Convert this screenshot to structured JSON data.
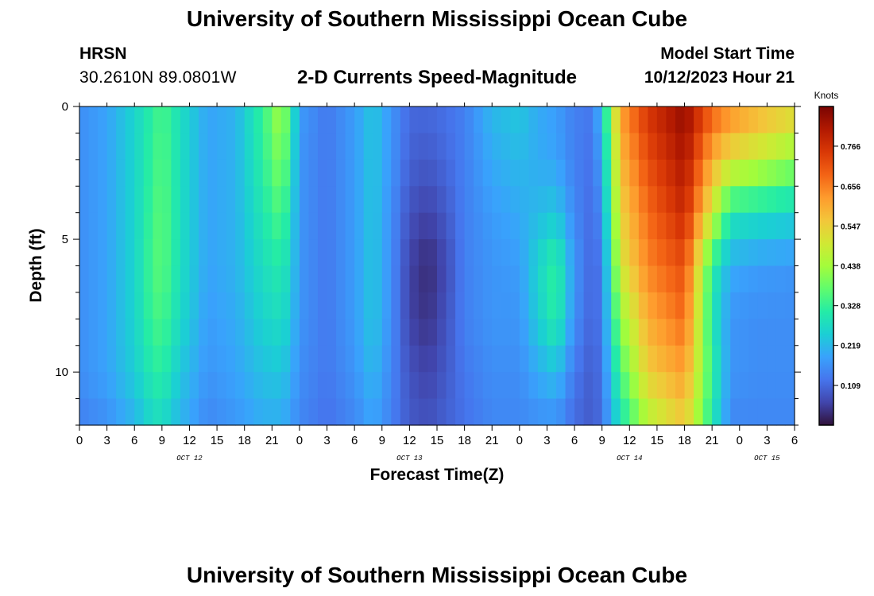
{
  "header": {
    "title": "University of Southern Mississippi Ocean Cube",
    "station": "HRSN",
    "coords": "30.2610N  89.0801W",
    "subtitle": "2-D Currents Speed-Magnitude",
    "start_label": "Model Start Time",
    "start_value": "10/12/2023 Hour 21"
  },
  "footer": {
    "title": "University of Southern Mississippi Ocean Cube"
  },
  "chart_data": {
    "type": "heatmap",
    "title": "2-D Currents Speed-Magnitude",
    "xlabel": "Forecast Time(Z)",
    "ylabel": "Depth (ft)",
    "x_range_hours": [
      0,
      78
    ],
    "x_tick_step_hours": 3,
    "x_tick_labels": [
      "0",
      "3",
      "6",
      "9",
      "12",
      "15",
      "18",
      "21",
      "0",
      "3",
      "6",
      "9",
      "12",
      "15",
      "18",
      "21",
      "0",
      "3",
      "6",
      "9",
      "12",
      "15",
      "18",
      "21",
      "0",
      "3",
      "6"
    ],
    "day_labels": [
      {
        "label": "OCT 12",
        "hour": 12
      },
      {
        "label": "OCT 13",
        "hour": 36
      },
      {
        "label": "OCT 14",
        "hour": 60
      },
      {
        "label": "OCT 15",
        "hour": 75
      }
    ],
    "y_range_ft": [
      0,
      12
    ],
    "y_tick_labels": [
      {
        "value": 0,
        "label": "0"
      },
      {
        "value": 5,
        "label": "5"
      },
      {
        "value": 10,
        "label": "10"
      }
    ],
    "colorbar": {
      "unit": "Knots",
      "min": 0.0,
      "max": 0.875,
      "ticks": [
        "0.766",
        "0.656",
        "0.547",
        "0.438",
        "0.328",
        "0.219",
        "0.109"
      ],
      "tick_values": [
        0.766,
        0.656,
        0.547,
        0.438,
        0.328,
        0.219,
        0.109
      ],
      "colors": [
        "#30123b",
        "#4145ab",
        "#4675ed",
        "#39a2fc",
        "#1bcfd4",
        "#24eca6",
        "#61fc6c",
        "#a4fc3b",
        "#d1e834",
        "#f3c63a",
        "#fe9b2d",
        "#f36315",
        "#d93806",
        "#b11901",
        "#7a0402"
      ]
    },
    "grid_dims": {
      "depth_rows": 12,
      "time_columns": 78
    },
    "profile_depths_ft": [
      0,
      2,
      4,
      6,
      8,
      10,
      12
    ],
    "speed_profiles_knots": [
      {
        "hour": 0,
        "speeds": [
          0.16,
          0.16,
          0.16,
          0.16,
          0.16,
          0.16,
          0.14
        ]
      },
      {
        "hour": 3,
        "speeds": [
          0.19,
          0.19,
          0.19,
          0.19,
          0.19,
          0.19,
          0.16
        ]
      },
      {
        "hour": 6,
        "speeds": [
          0.26,
          0.26,
          0.26,
          0.26,
          0.26,
          0.25,
          0.21
        ]
      },
      {
        "hour": 8,
        "speeds": [
          0.32,
          0.33,
          0.34,
          0.35,
          0.34,
          0.31,
          0.27
        ]
      },
      {
        "hour": 9,
        "speeds": [
          0.35,
          0.36,
          0.37,
          0.37,
          0.35,
          0.32,
          0.27
        ]
      },
      {
        "hour": 11,
        "speeds": [
          0.28,
          0.28,
          0.28,
          0.28,
          0.27,
          0.24,
          0.21
        ]
      },
      {
        "hour": 14,
        "speeds": [
          0.19,
          0.19,
          0.19,
          0.19,
          0.18,
          0.17,
          0.15
        ]
      },
      {
        "hour": 17,
        "speeds": [
          0.21,
          0.21,
          0.21,
          0.21,
          0.2,
          0.19,
          0.17
        ]
      },
      {
        "hour": 20,
        "speeds": [
          0.33,
          0.32,
          0.3,
          0.28,
          0.26,
          0.23,
          0.2
        ]
      },
      {
        "hour": 22,
        "speeds": [
          0.45,
          0.41,
          0.36,
          0.31,
          0.28,
          0.24,
          0.2
        ]
      },
      {
        "hour": 23,
        "speeds": [
          0.33,
          0.31,
          0.28,
          0.26,
          0.24,
          0.21,
          0.18
        ]
      },
      {
        "hour": 24,
        "speeds": [
          0.18,
          0.17,
          0.17,
          0.17,
          0.17,
          0.16,
          0.15
        ]
      },
      {
        "hour": 27,
        "speeds": [
          0.13,
          0.13,
          0.13,
          0.13,
          0.13,
          0.13,
          0.12
        ]
      },
      {
        "hour": 30,
        "speeds": [
          0.18,
          0.18,
          0.18,
          0.18,
          0.18,
          0.17,
          0.15
        ]
      },
      {
        "hour": 32,
        "speeds": [
          0.24,
          0.24,
          0.24,
          0.24,
          0.24,
          0.22,
          0.19
        ]
      },
      {
        "hour": 34,
        "speeds": [
          0.17,
          0.17,
          0.16,
          0.16,
          0.16,
          0.15,
          0.14
        ]
      },
      {
        "hour": 36,
        "speeds": [
          0.11,
          0.1,
          0.08,
          0.06,
          0.06,
          0.08,
          0.09
        ]
      },
      {
        "hour": 38,
        "speeds": [
          0.11,
          0.09,
          0.06,
          0.03,
          0.04,
          0.06,
          0.08
        ]
      },
      {
        "hour": 40,
        "speeds": [
          0.12,
          0.11,
          0.09,
          0.07,
          0.08,
          0.09,
          0.1
        ]
      },
      {
        "hour": 42,
        "speeds": [
          0.14,
          0.14,
          0.14,
          0.14,
          0.14,
          0.13,
          0.12
        ]
      },
      {
        "hour": 45,
        "speeds": [
          0.22,
          0.2,
          0.18,
          0.17,
          0.17,
          0.16,
          0.15
        ]
      },
      {
        "hour": 48,
        "speeds": [
          0.24,
          0.22,
          0.2,
          0.18,
          0.17,
          0.16,
          0.15
        ]
      },
      {
        "hour": 50,
        "speeds": [
          0.2,
          0.2,
          0.22,
          0.26,
          0.25,
          0.2,
          0.16
        ]
      },
      {
        "hour": 52,
        "speeds": [
          0.18,
          0.19,
          0.24,
          0.33,
          0.32,
          0.23,
          0.16
        ]
      },
      {
        "hour": 54,
        "speeds": [
          0.14,
          0.14,
          0.15,
          0.17,
          0.16,
          0.13,
          0.11
        ]
      },
      {
        "hour": 56,
        "speeds": [
          0.13,
          0.12,
          0.11,
          0.1,
          0.1,
          0.09,
          0.09
        ]
      },
      {
        "hour": 57,
        "speeds": [
          0.24,
          0.2,
          0.17,
          0.14,
          0.14,
          0.13,
          0.12
        ]
      },
      {
        "hour": 59,
        "speeds": [
          0.62,
          0.58,
          0.54,
          0.5,
          0.42,
          0.35,
          0.28
        ]
      },
      {
        "hour": 62,
        "speeds": [
          0.76,
          0.72,
          0.68,
          0.65,
          0.6,
          0.55,
          0.45
        ]
      },
      {
        "hour": 66,
        "speeds": [
          0.85,
          0.82,
          0.78,
          0.72,
          0.68,
          0.62,
          0.55
        ]
      },
      {
        "hour": 69,
        "speeds": [
          0.7,
          0.6,
          0.5,
          0.32,
          0.3,
          0.33,
          0.3
        ]
      },
      {
        "hour": 71,
        "speeds": [
          0.65,
          0.52,
          0.3,
          0.2,
          0.17,
          0.17,
          0.15
        ]
      },
      {
        "hour": 74,
        "speeds": [
          0.6,
          0.48,
          0.28,
          0.18,
          0.16,
          0.16,
          0.15
        ]
      },
      {
        "hour": 78,
        "speeds": [
          0.55,
          0.42,
          0.26,
          0.17,
          0.16,
          0.16,
          0.15
        ]
      }
    ]
  }
}
